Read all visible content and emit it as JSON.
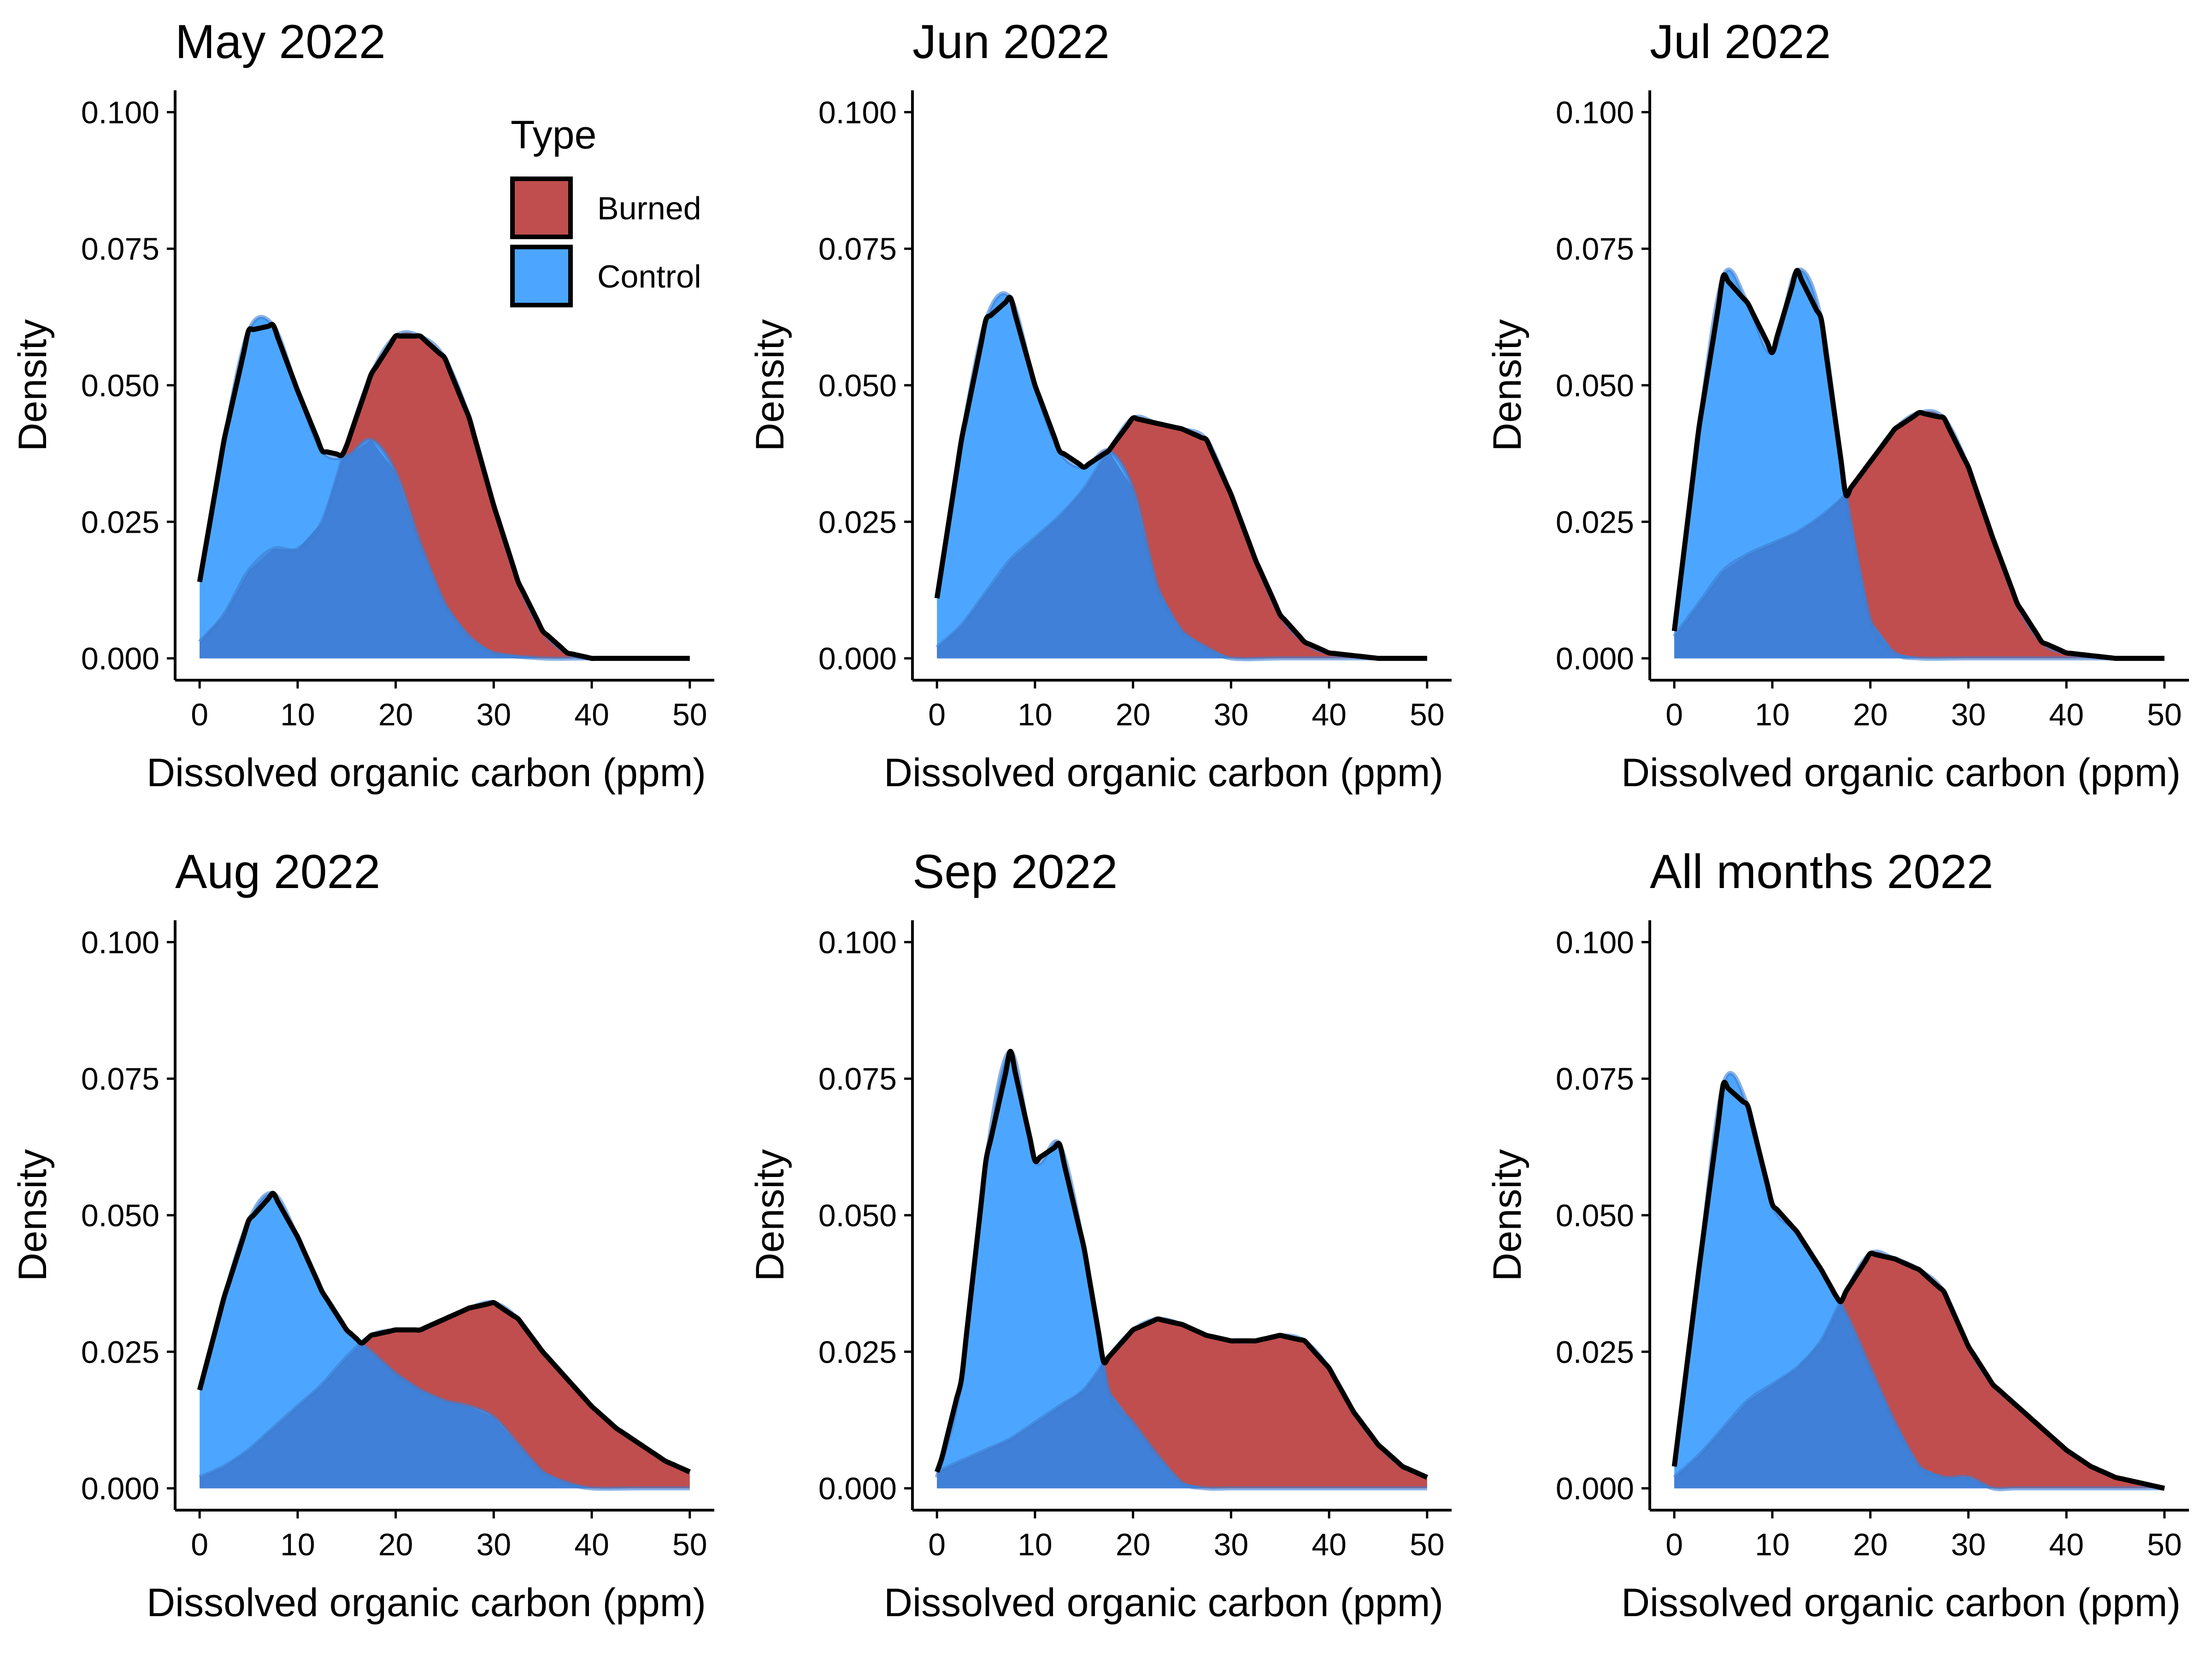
{
  "chart_data": {
    "type": "area",
    "kind": "overlapping density curves, small multiples",
    "x_axis_label": "Dissolved organic carbon (ppm)",
    "y_axis_label": "Density",
    "x_ticks": [
      0,
      10,
      20,
      30,
      40,
      50
    ],
    "y_ticks": [
      0.0,
      0.025,
      0.05,
      0.075,
      0.1
    ],
    "x_tick_labels": [
      "0",
      "10",
      "20",
      "30",
      "40",
      "50"
    ],
    "y_tick_labels": [
      "0.000",
      "0.025",
      "0.050",
      "0.075",
      "0.100"
    ],
    "xlim": [
      -2.5,
      52.5
    ],
    "ylim": [
      -0.004,
      0.104
    ],
    "grid": false,
    "legend": {
      "title": "Type",
      "placement": "inside top-right of first panel",
      "entries": [
        {
          "label": "Burned",
          "color": "#C04E4E"
        },
        {
          "label": "Control",
          "color": "#4CA6FF"
        }
      ],
      "overlap_color": "#4080D8"
    },
    "panels": [
      {
        "title": "May 2022",
        "series": [
          {
            "name": "Burned",
            "x": [
              0,
              2.5,
              5,
              7.5,
              10,
              12.5,
              15,
              17.5,
              20,
              22.5,
              25,
              27.5,
              30,
              32.5,
              35,
              37.5,
              40,
              45,
              50
            ],
            "y": [
              0.003,
              0.008,
              0.016,
              0.02,
              0.02,
              0.025,
              0.039,
              0.052,
              0.059,
              0.059,
              0.055,
              0.044,
              0.028,
              0.014,
              0.005,
              0.001,
              0.0,
              0.0,
              0.0
            ]
          },
          {
            "name": "Control",
            "x": [
              0,
              2.5,
              5,
              7.5,
              10,
              12.5,
              15,
              17.5,
              20,
              22.5,
              25,
              27.5,
              30,
              35,
              40,
              50
            ],
            "y": [
              0.014,
              0.04,
              0.06,
              0.061,
              0.049,
              0.038,
              0.037,
              0.04,
              0.034,
              0.021,
              0.01,
              0.004,
              0.001,
              0.0,
              0.0,
              0.0
            ]
          }
        ]
      },
      {
        "title": "Jun 2022",
        "series": [
          {
            "name": "Burned",
            "x": [
              0,
              2.5,
              5,
              7.5,
              10,
              12.5,
              15,
              17.5,
              20,
              22.5,
              25,
              27.5,
              30,
              32.5,
              35,
              37.5,
              40,
              45,
              50
            ],
            "y": [
              0.002,
              0.006,
              0.012,
              0.018,
              0.022,
              0.026,
              0.031,
              0.038,
              0.044,
              0.043,
              0.042,
              0.04,
              0.03,
              0.018,
              0.008,
              0.003,
              0.001,
              0.0,
              0.0
            ]
          },
          {
            "name": "Control",
            "x": [
              0,
              2.5,
              5,
              7.5,
              10,
              12.5,
              15,
              17.5,
              20,
              22.5,
              25,
              27.5,
              30,
              35,
              40,
              50
            ],
            "y": [
              0.011,
              0.04,
              0.062,
              0.066,
              0.05,
              0.038,
              0.035,
              0.038,
              0.031,
              0.013,
              0.005,
              0.002,
              0.0,
              0.0,
              0.0,
              0.0
            ]
          }
        ]
      },
      {
        "title": "Jul 2022",
        "series": [
          {
            "name": "Burned",
            "x": [
              0,
              2.5,
              5,
              7.5,
              10,
              12.5,
              15,
              17.5,
              20,
              22.5,
              25,
              27.5,
              30,
              32.5,
              35,
              37.5,
              40,
              45,
              50
            ],
            "y": [
              0.004,
              0.01,
              0.016,
              0.019,
              0.021,
              0.023,
              0.026,
              0.03,
              0.036,
              0.042,
              0.045,
              0.044,
              0.035,
              0.022,
              0.01,
              0.003,
              0.001,
              0.0,
              0.0
            ]
          },
          {
            "name": "Control",
            "x": [
              0,
              2.5,
              5,
              7.5,
              10,
              12.5,
              15,
              17.5,
              20,
              22.5,
              25,
              30,
              40,
              50
            ],
            "y": [
              0.005,
              0.042,
              0.07,
              0.065,
              0.056,
              0.071,
              0.062,
              0.03,
              0.007,
              0.001,
              0.0,
              0.0,
              0.0,
              0.0
            ]
          }
        ]
      },
      {
        "title": "Aug 2022",
        "series": [
          {
            "name": "Burned",
            "x": [
              0,
              2.5,
              5,
              7.5,
              10,
              12.5,
              15,
              17.5,
              20,
              22.5,
              25,
              27.5,
              30,
              32.5,
              35,
              37.5,
              40,
              42.5,
              45,
              47.5,
              50
            ],
            "y": [
              0.002,
              0.004,
              0.007,
              0.011,
              0.015,
              0.019,
              0.024,
              0.028,
              0.029,
              0.029,
              0.031,
              0.033,
              0.034,
              0.031,
              0.025,
              0.02,
              0.015,
              0.011,
              0.008,
              0.005,
              0.003
            ]
          },
          {
            "name": "Control",
            "x": [
              0,
              2.5,
              5,
              7.5,
              10,
              12.5,
              15,
              17.5,
              20,
              22.5,
              25,
              27.5,
              30,
              32.5,
              35,
              37.5,
              40,
              45,
              50
            ],
            "y": [
              0.018,
              0.035,
              0.049,
              0.054,
              0.046,
              0.036,
              0.029,
              0.025,
              0.021,
              0.018,
              0.016,
              0.015,
              0.013,
              0.008,
              0.003,
              0.001,
              0.0,
              0.0,
              0.0
            ]
          }
        ]
      },
      {
        "title": "Sep 2022",
        "series": [
          {
            "name": "Burned",
            "x": [
              0,
              2.5,
              5,
              7.5,
              10,
              12.5,
              15,
              17.5,
              20,
              22.5,
              25,
              27.5,
              30,
              32.5,
              35,
              37.5,
              40,
              42.5,
              45,
              47.5,
              50
            ],
            "y": [
              0.003,
              0.005,
              0.007,
              0.009,
              0.012,
              0.015,
              0.018,
              0.024,
              0.029,
              0.031,
              0.03,
              0.028,
              0.027,
              0.027,
              0.028,
              0.027,
              0.022,
              0.014,
              0.008,
              0.004,
              0.002
            ]
          },
          {
            "name": "Control",
            "x": [
              0,
              2.5,
              5,
              7.5,
              10,
              12.5,
              15,
              17.5,
              20,
              22.5,
              25,
              27.5,
              30,
              35,
              40,
              50
            ],
            "y": [
              0.002,
              0.02,
              0.06,
              0.08,
              0.06,
              0.063,
              0.044,
              0.018,
              0.012,
              0.006,
              0.001,
              0.0,
              0.0,
              0.0,
              0.0,
              0.0
            ]
          }
        ]
      },
      {
        "title": "All months 2022",
        "series": [
          {
            "name": "Burned",
            "x": [
              0,
              2.5,
              5,
              7.5,
              10,
              12.5,
              15,
              17.5,
              20,
              22.5,
              25,
              27.5,
              30,
              32.5,
              35,
              37.5,
              40,
              42.5,
              45,
              47.5,
              50
            ],
            "y": [
              0.002,
              0.006,
              0.011,
              0.016,
              0.019,
              0.022,
              0.027,
              0.036,
              0.043,
              0.042,
              0.04,
              0.036,
              0.026,
              0.019,
              0.015,
              0.011,
              0.007,
              0.004,
              0.002,
              0.001,
              0.0
            ]
          },
          {
            "name": "Control",
            "x": [
              0,
              2.5,
              5,
              7.5,
              10,
              12.5,
              15,
              17.5,
              20,
              22.5,
              25,
              27.5,
              30,
              32.5,
              35,
              40,
              50
            ],
            "y": [
              0.004,
              0.04,
              0.074,
              0.07,
              0.052,
              0.047,
              0.04,
              0.032,
              0.022,
              0.012,
              0.004,
              0.002,
              0.002,
              0.0,
              0.0,
              0.0,
              0.0
            ]
          }
        ]
      }
    ]
  }
}
